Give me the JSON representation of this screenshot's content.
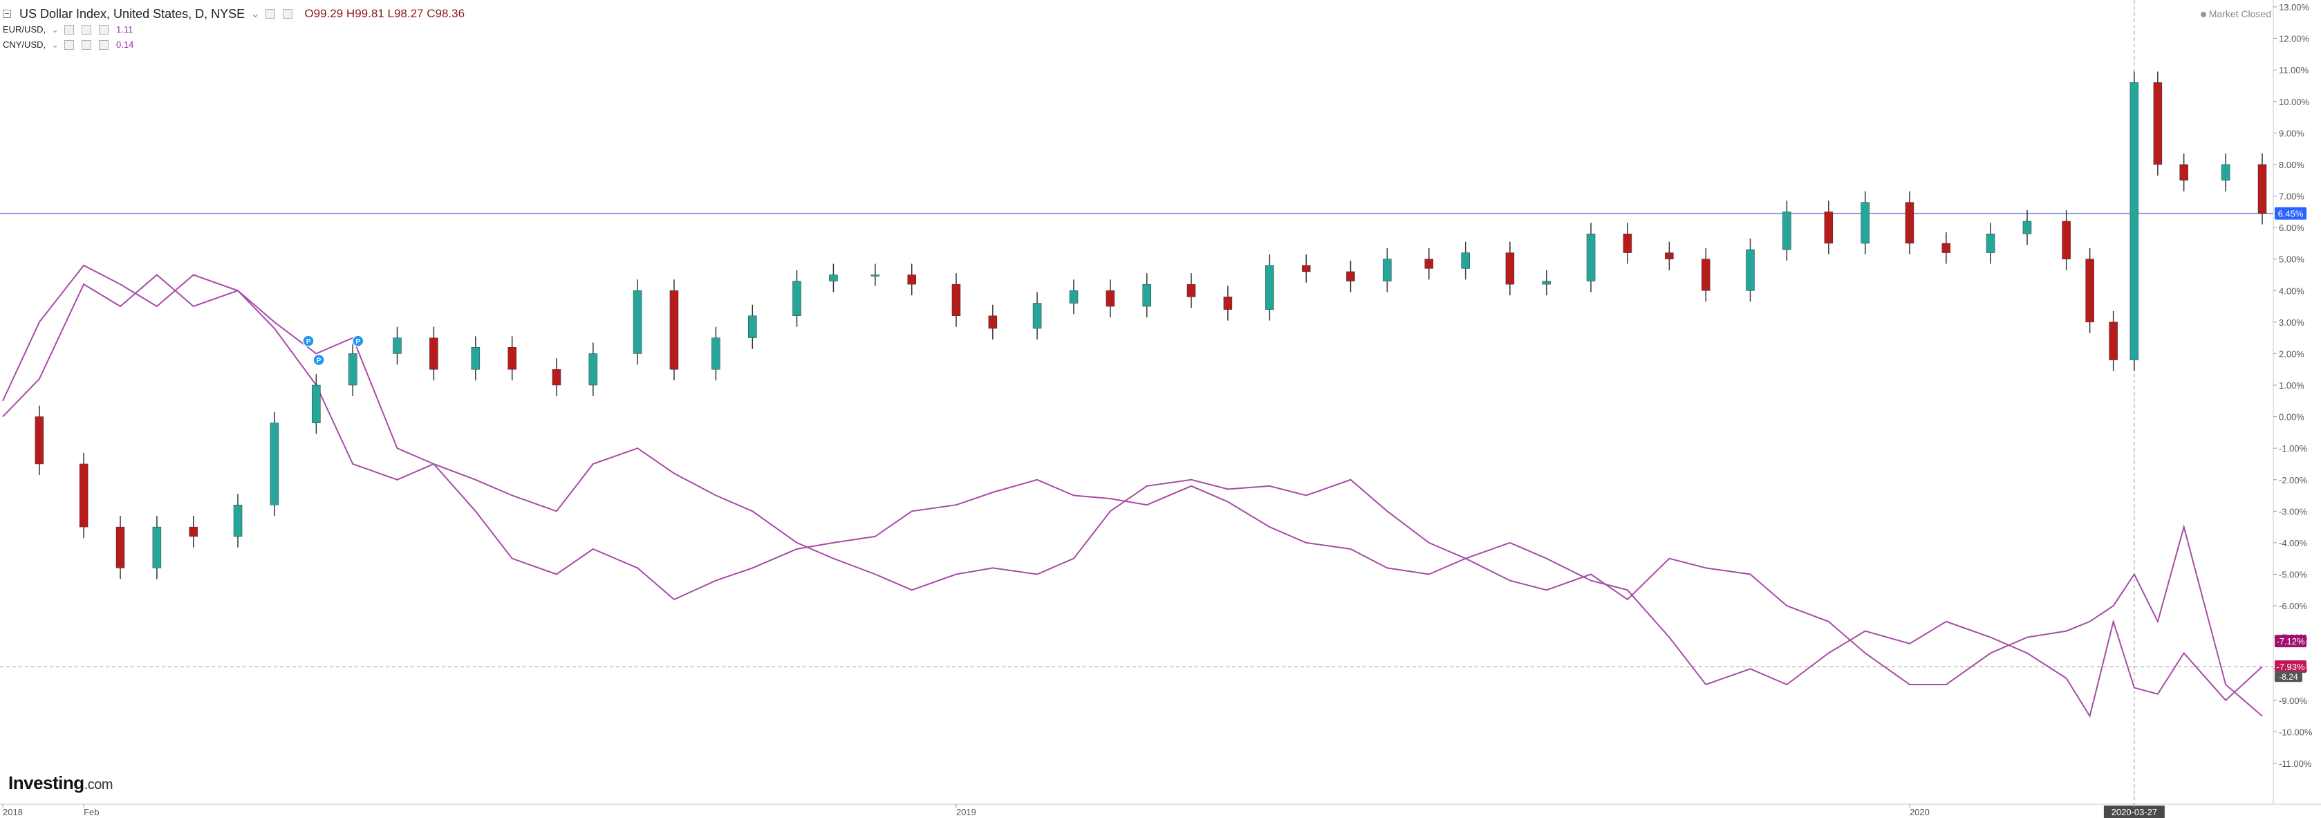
{
  "legend": {
    "main_title": "US Dollar Index, United States, D, NYSE",
    "open_label": "O",
    "open": "99.29",
    "high_label": "H",
    "high": "99.81",
    "low_label": "L",
    "low": "98.27",
    "close_label": "C",
    "close": "98.36",
    "indicators": [
      {
        "name": "EUR/USD, ",
        "value": "1.11"
      },
      {
        "name": "CNY/USD, ",
        "value": "0.14"
      }
    ]
  },
  "status": {
    "market_closed": "Market Closed"
  },
  "watermark": {
    "brand": "Investing",
    "suffix": ".com"
  },
  "colors": {
    "up": "#26a69a",
    "down": "#b71c1c",
    "wick": "#333333",
    "indicator_line": "#a64ca6",
    "price_line": "#7f8fe0",
    "price_badge": "#2962ff",
    "eur_badge": "#a0106e",
    "cny_badge": "#c2185b",
    "marker": "#2196f3"
  },
  "chart_data": {
    "type": "line",
    "title": "US Dollar Index, United States, D, NYSE",
    "y_unit": "%",
    "ylim": [
      -11,
      13
    ],
    "y_ticks": [
      "13.00%",
      "12.00%",
      "11.00%",
      "10.00%",
      "9.00%",
      "8.00%",
      "7.00%",
      "6.00%",
      "5.00%",
      "4.00%",
      "3.00%",
      "2.00%",
      "1.00%",
      "0.00%",
      "-1.00%",
      "-2.00%",
      "-3.00%",
      "-4.00%",
      "-5.00%",
      "-6.00%",
      "-7.00%",
      "-8.00%",
      "-9.00%",
      "-10.00%",
      "-11.00%"
    ],
    "x_labels": [
      "2018",
      "Feb",
      "2019",
      "2020",
      "2020-03-27"
    ],
    "x_label_positions": [
      "2018-01-01",
      "2018-02-01",
      "2019-01-01",
      "2020-01-01",
      "2020-03-27"
    ],
    "x_start": "2018-01-01",
    "x_end": "2020-05-15",
    "grid": false,
    "crosshair_date": "2020-03-27",
    "horizontal_levels": [
      {
        "value": 6.45,
        "label": "6.45%",
        "style": "solid"
      },
      {
        "value": -7.12,
        "label": "-7.12%",
        "style": "none"
      },
      {
        "value": -7.93,
        "label": "-7.93%",
        "style": "dashed"
      }
    ],
    "extra_badge": {
      "value": -8.24,
      "label": "-8.24"
    },
    "markers": [
      {
        "date": "2018-04-28",
        "value": 2.4,
        "label": "P"
      },
      {
        "date": "2018-05-02",
        "value": 1.8,
        "label": "P"
      },
      {
        "date": "2018-05-17",
        "value": 2.4,
        "label": "P"
      }
    ],
    "series": [
      {
        "name": "US Dollar Index",
        "type": "candlestick",
        "dates": [
          "2018-01-01",
          "2018-01-15",
          "2018-02-01",
          "2018-02-15",
          "2018-03-01",
          "2018-03-15",
          "2018-04-01",
          "2018-04-15",
          "2018-05-01",
          "2018-05-15",
          "2018-06-01",
          "2018-06-15",
          "2018-07-01",
          "2018-07-15",
          "2018-08-01",
          "2018-08-15",
          "2018-09-01",
          "2018-09-15",
          "2018-10-01",
          "2018-10-15",
          "2018-11-01",
          "2018-11-15",
          "2018-12-01",
          "2018-12-15",
          "2019-01-01",
          "2019-01-15",
          "2019-02-01",
          "2019-02-15",
          "2019-03-01",
          "2019-03-15",
          "2019-04-01",
          "2019-04-15",
          "2019-05-01",
          "2019-05-15",
          "2019-06-01",
          "2019-06-15",
          "2019-07-01",
          "2019-07-15",
          "2019-08-01",
          "2019-08-15",
          "2019-09-01",
          "2019-09-15",
          "2019-10-01",
          "2019-10-15",
          "2019-11-01",
          "2019-11-15",
          "2019-12-01",
          "2019-12-15",
          "2020-01-01",
          "2020-01-15",
          "2020-02-01",
          "2020-02-15",
          "2020-03-01",
          "2020-03-10",
          "2020-03-19",
          "2020-03-27",
          "2020-04-05",
          "2020-04-15",
          "2020-05-01",
          "2020-05-15"
        ],
        "values": [
          0.0,
          -1.5,
          -3.5,
          -4.8,
          -3.5,
          -3.8,
          -2.8,
          -0.2,
          1.0,
          2.0,
          2.5,
          1.5,
          2.2,
          1.5,
          1.0,
          2.0,
          4.0,
          1.5,
          2.5,
          3.2,
          4.3,
          4.5,
          4.5,
          4.2,
          3.2,
          2.8,
          3.6,
          4.0,
          3.5,
          4.2,
          3.8,
          3.4,
          4.8,
          4.6,
          4.3,
          5.0,
          4.7,
          5.2,
          4.2,
          4.3,
          5.8,
          5.2,
          5.0,
          4.0,
          5.3,
          6.5,
          5.5,
          6.8,
          5.5,
          5.2,
          5.8,
          6.2,
          5.0,
          3.0,
          1.8,
          10.6,
          8.0,
          7.5,
          8.0,
          6.45
        ]
      },
      {
        "name": "EUR/USD",
        "type": "line",
        "dates": [
          "2018-01-01",
          "2018-01-15",
          "2018-02-01",
          "2018-02-15",
          "2018-03-01",
          "2018-03-15",
          "2018-04-01",
          "2018-04-15",
          "2018-05-01",
          "2018-05-15",
          "2018-06-01",
          "2018-06-15",
          "2018-07-01",
          "2018-07-15",
          "2018-08-01",
          "2018-08-15",
          "2018-09-01",
          "2018-09-15",
          "2018-10-01",
          "2018-10-15",
          "2018-11-01",
          "2018-11-15",
          "2018-12-01",
          "2018-12-15",
          "2019-01-01",
          "2019-01-15",
          "2019-02-01",
          "2019-02-15",
          "2019-03-01",
          "2019-03-15",
          "2019-04-01",
          "2019-04-15",
          "2019-05-01",
          "2019-05-15",
          "2019-06-01",
          "2019-06-15",
          "2019-07-01",
          "2019-07-15",
          "2019-08-01",
          "2019-08-15",
          "2019-09-01",
          "2019-09-15",
          "2019-10-01",
          "2019-10-15",
          "2019-11-01",
          "2019-11-15",
          "2019-12-01",
          "2019-12-15",
          "2020-01-01",
          "2020-01-15",
          "2020-02-01",
          "2020-02-15",
          "2020-03-01",
          "2020-03-10",
          "2020-03-19",
          "2020-03-27",
          "2020-04-05",
          "2020-04-15",
          "2020-05-01",
          "2020-05-15"
        ],
        "values": [
          0.0,
          1.2,
          4.2,
          3.5,
          4.5,
          3.5,
          4.0,
          2.8,
          1.0,
          -1.5,
          -2.0,
          -1.5,
          -3.0,
          -4.5,
          -5.0,
          -4.2,
          -4.8,
          -5.8,
          -5.2,
          -4.8,
          -4.2,
          -4.0,
          -3.8,
          -3.0,
          -2.8,
          -2.4,
          -2.0,
          -2.5,
          -2.6,
          -2.8,
          -2.2,
          -2.7,
          -3.5,
          -4.0,
          -4.2,
          -4.8,
          -5.0,
          -4.5,
          -4.0,
          -4.5,
          -5.2,
          -5.5,
          -7.0,
          -8.5,
          -8.0,
          -8.5,
          -7.5,
          -6.8,
          -7.2,
          -6.5,
          -7.0,
          -7.5,
          -8.3,
          -9.5,
          -6.5,
          -8.6,
          -8.8,
          -7.5,
          -9.0,
          -7.93
        ]
      },
      {
        "name": "CNY/USD",
        "type": "line",
        "dates": [
          "2018-01-01",
          "2018-01-15",
          "2018-02-01",
          "2018-02-15",
          "2018-03-01",
          "2018-03-15",
          "2018-04-01",
          "2018-04-15",
          "2018-05-01",
          "2018-05-15",
          "2018-06-01",
          "2018-06-15",
          "2018-07-01",
          "2018-07-15",
          "2018-08-01",
          "2018-08-15",
          "2018-09-01",
          "2018-09-15",
          "2018-10-01",
          "2018-10-15",
          "2018-11-01",
          "2018-11-15",
          "2018-12-01",
          "2018-12-15",
          "2019-01-01",
          "2019-01-15",
          "2019-02-01",
          "2019-02-15",
          "2019-03-01",
          "2019-03-15",
          "2019-04-01",
          "2019-04-15",
          "2019-05-01",
          "2019-05-15",
          "2019-06-01",
          "2019-06-15",
          "2019-07-01",
          "2019-07-15",
          "2019-08-01",
          "2019-08-15",
          "2019-09-01",
          "2019-09-15",
          "2019-10-01",
          "2019-10-15",
          "2019-11-01",
          "2019-11-15",
          "2019-12-01",
          "2019-12-15",
          "2020-01-01",
          "2020-01-15",
          "2020-02-01",
          "2020-02-15",
          "2020-03-01",
          "2020-03-10",
          "2020-03-19",
          "2020-03-27",
          "2020-04-05",
          "2020-04-15",
          "2020-05-01",
          "2020-05-15"
        ],
        "values": [
          0.5,
          3.0,
          4.8,
          4.2,
          3.5,
          4.5,
          4.0,
          3.0,
          2.0,
          2.5,
          -1.0,
          -1.5,
          -2.0,
          -2.5,
          -3.0,
          -1.5,
          -1.0,
          -1.8,
          -2.5,
          -3.0,
          -4.0,
          -4.5,
          -5.0,
          -5.5,
          -5.0,
          -4.8,
          -5.0,
          -4.5,
          -3.0,
          -2.2,
          -2.0,
          -2.3,
          -2.2,
          -2.5,
          -2.0,
          -3.0,
          -4.0,
          -4.5,
          -5.2,
          -5.5,
          -5.0,
          -5.8,
          -4.5,
          -4.8,
          -5.0,
          -6.0,
          -6.5,
          -7.5,
          -8.5,
          -8.5,
          -7.5,
          -7.0,
          -6.8,
          -6.5,
          -6.0,
          -5.0,
          -6.5,
          -3.5,
          -8.5,
          -9.5
        ]
      }
    ]
  }
}
